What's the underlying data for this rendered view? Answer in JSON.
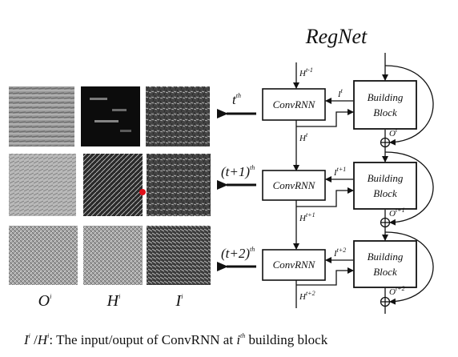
{
  "title": "RegNet",
  "rows": [
    {
      "step_label": "t",
      "step_sup": "th",
      "o_sup": "t",
      "h_out_sup": "t",
      "i_sup": "t",
      "h_in_sup": "t-1"
    },
    {
      "step_label": "(t+1)",
      "step_sup": "th",
      "o_sup": "t+1",
      "h_out_sup": "t+1",
      "i_sup": "t+1"
    },
    {
      "step_label": "(t+2)",
      "step_sup": "th",
      "o_sup": "t+2",
      "h_out_sup": "t+2",
      "i_sup": "t+2"
    }
  ],
  "block": {
    "convrnn_label": "ConvRNN",
    "building_line1": "Building",
    "building_line2": "Block",
    "h_var": "H",
    "i_var": "I",
    "o_var": "O"
  },
  "columns": {
    "o_label": "O",
    "h_label": "H",
    "i_label": "I",
    "sup": "i"
  },
  "caption": {
    "i": "I",
    "h": "H",
    "sup_i": "i",
    "sep": " /",
    "text": ": The input/ouput of  ConvRNN at  ",
    "ith_base": "i",
    "ith_sup": "th",
    "tail": " building block"
  },
  "colors": {
    "marker": "#e0101a",
    "line": "#111111"
  }
}
